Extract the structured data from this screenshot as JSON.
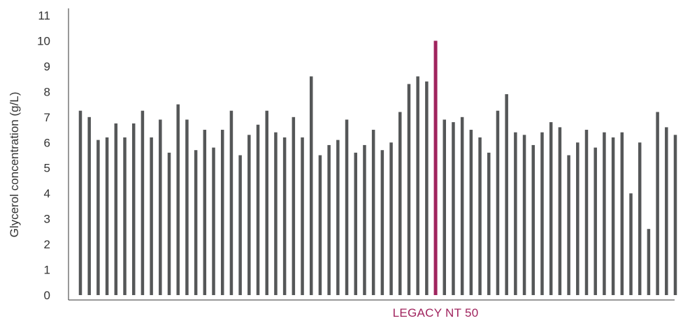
{
  "chart_data": {
    "type": "bar",
    "ylabel": "Glycerol concentration (g/L)",
    "ylim": [
      0,
      11
    ],
    "yticks": [
      0,
      1,
      2,
      3,
      4,
      5,
      6,
      7,
      8,
      9,
      10,
      11
    ],
    "grid": false,
    "legend": "none",
    "bar_color": "#555758",
    "highlight_color": "#A0245E",
    "highlight": {
      "index": 40,
      "label": "LEGACY NT 50"
    },
    "values": [
      7.25,
      7.0,
      6.1,
      6.2,
      6.75,
      6.2,
      6.75,
      7.25,
      6.2,
      6.9,
      5.6,
      7.5,
      6.9,
      5.7,
      6.5,
      5.8,
      6.5,
      7.25,
      5.5,
      6.3,
      6.7,
      7.25,
      6.4,
      6.2,
      7.0,
      6.2,
      8.6,
      5.5,
      5.9,
      6.1,
      6.9,
      5.6,
      5.9,
      6.5,
      5.7,
      6.0,
      7.2,
      8.3,
      8.6,
      8.4,
      10.0,
      6.9,
      6.8,
      7.0,
      6.5,
      6.2,
      5.6,
      7.25,
      7.9,
      6.4,
      6.3,
      5.9,
      6.4,
      6.8,
      6.6,
      5.5,
      6.0,
      6.5,
      5.8,
      6.4,
      6.2,
      6.4,
      4.0,
      6.0,
      2.6,
      7.2,
      6.6,
      6.3
    ]
  }
}
